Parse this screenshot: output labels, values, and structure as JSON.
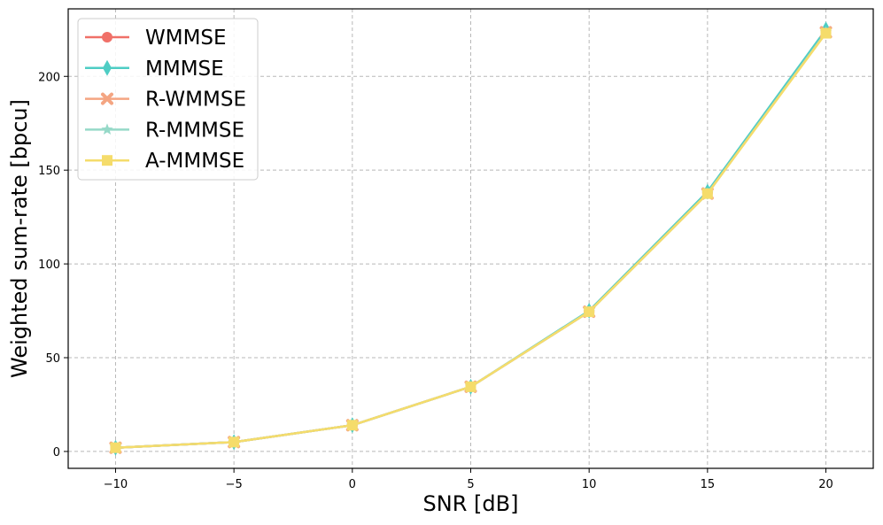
{
  "chart_data": {
    "type": "line",
    "xlabel": "SNR [dB]",
    "ylabel": "Weighted sum-rate [bpcu]",
    "xlim": [
      -12,
      22
    ],
    "ylim": [
      -9,
      236
    ],
    "xticks": [
      -10,
      -5,
      0,
      5,
      10,
      15,
      20
    ],
    "xtick_labels": [
      "−10",
      "−5",
      "0",
      "5",
      "10",
      "15",
      "20"
    ],
    "yticks": [
      0,
      50,
      100,
      150,
      200
    ],
    "ytick_labels": [
      "0",
      "50",
      "100",
      "150",
      "200"
    ],
    "grid": true,
    "legend_position": "top-left",
    "x": [
      -10,
      -5,
      0,
      5,
      10,
      15,
      20
    ],
    "series": [
      {
        "name": "WMMSE",
        "color": "#f07068",
        "marker": "circle",
        "values": [
          2,
          5,
          14,
          34.5,
          74.5,
          138,
          224
        ]
      },
      {
        "name": "MMMSE",
        "color": "#4ecdc4",
        "marker": "diamond",
        "values": [
          2,
          5,
          14,
          34.5,
          75,
          138.5,
          225
        ]
      },
      {
        "name": "R-WMMSE",
        "color": "#f4a582",
        "marker": "x",
        "values": [
          2,
          5,
          14,
          34.5,
          74.5,
          137.5,
          223.5
        ]
      },
      {
        "name": "R-MMMSE",
        "color": "#96d9c8",
        "marker": "star",
        "values": [
          2,
          5,
          14,
          34.5,
          74.5,
          137.5,
          223.5
        ]
      },
      {
        "name": "A-MMMSE",
        "color": "#f5dc6b",
        "marker": "square",
        "values": [
          2,
          5,
          14,
          34.5,
          74.5,
          137.5,
          223
        ]
      }
    ]
  }
}
